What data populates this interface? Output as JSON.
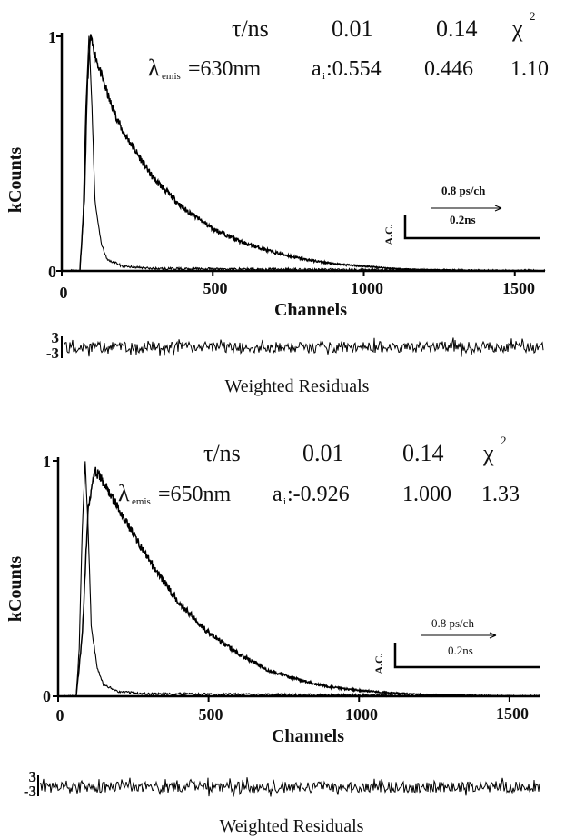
{
  "panels": [
    {
      "y_axis_label": "kCounts",
      "x_axis_label": "Channels",
      "y_ticks": [
        "1",
        "0"
      ],
      "x_ticks": [
        "0",
        "500",
        "1000",
        "1500"
      ],
      "fit_table": {
        "tau_label": "τ/ns",
        "tau_values": [
          "0.01",
          "0.14"
        ],
        "chi_label": "χ",
        "chi_sup": "2",
        "lambda_symbol": "λ",
        "lambda_sub": "emis",
        "lambda_value": "=630nm",
        "a_symbol": "a",
        "a_sub": "i",
        "a_values": [
          ":0.554",
          "0.446"
        ],
        "chi_value": "1.10"
      },
      "scale_box": {
        "rate": "0.8 ps/ch",
        "time": "0.2ns",
        "ac": "A.C."
      },
      "residuals": {
        "labels": [
          "3",
          "-3"
        ],
        "title": "Weighted Residuals"
      }
    },
    {
      "y_axis_label": "kCounts",
      "x_axis_label": "Channels",
      "y_ticks": [
        "1",
        "0"
      ],
      "x_ticks": [
        "0",
        "500",
        "1000",
        "1500"
      ],
      "fit_table": {
        "tau_label": "τ/ns",
        "tau_values": [
          "0.01",
          "0.14"
        ],
        "chi_label": "χ",
        "chi_sup": "2",
        "lambda_symbol": "λ",
        "lambda_sub": "emis",
        "lambda_value": "=650nm",
        "a_symbol": "a",
        "a_sub": "i",
        "a_values": [
          ":-0.926",
          "1.000"
        ],
        "chi_value": "1.33"
      },
      "scale_box": {
        "rate": "0.8 ps/ch",
        "time": "0.2ns",
        "ac": "A.C."
      },
      "residuals": {
        "labels": [
          "3",
          "-3"
        ],
        "title": "Weighted Residuals"
      }
    }
  ],
  "chart_data": [
    {
      "type": "line",
      "xlabel": "Channels",
      "ylabel": "kCounts",
      "xlim": [
        0,
        1600
      ],
      "ylim": [
        0,
        1
      ],
      "series": [
        {
          "x": [
            0,
            60,
            75,
            85,
            95,
            100,
            120,
            160,
            200,
            300,
            400,
            500,
            600,
            700,
            800,
            900,
            1000,
            1100,
            1200,
            1400,
            1600
          ],
          "y": [
            0,
            0,
            0.3,
            0.8,
            1.0,
            0.97,
            0.88,
            0.72,
            0.6,
            0.4,
            0.27,
            0.18,
            0.12,
            0.08,
            0.05,
            0.03,
            0.02,
            0.01,
            0.005,
            0.002,
            0
          ]
        },
        {
          "x": [
            0,
            60,
            70,
            80,
            90,
            100,
            110,
            130,
            150,
            200,
            300,
            1600
          ],
          "y": [
            0,
            0,
            0.2,
            0.7,
            1.0,
            0.7,
            0.3,
            0.12,
            0.05,
            0.02,
            0.01,
            0
          ]
        }
      ]
    },
    {
      "type": "line",
      "xlabel": "Channels",
      "ylabel": "kCounts",
      "xlim": [
        0,
        1600
      ],
      "ylim": [
        0,
        1
      ],
      "series": [
        {
          "x": [
            0,
            60,
            80,
            100,
            120,
            140,
            200,
            300,
            400,
            500,
            600,
            700,
            800,
            900,
            1000,
            1100,
            1200,
            1400,
            1600
          ],
          "y": [
            0,
            0,
            0.25,
            0.8,
            0.96,
            0.93,
            0.8,
            0.58,
            0.4,
            0.27,
            0.18,
            0.11,
            0.07,
            0.04,
            0.025,
            0.015,
            0.008,
            0.003,
            0
          ]
        },
        {
          "x": [
            0,
            60,
            70,
            80,
            90,
            100,
            110,
            130,
            150,
            200,
            300,
            1600
          ],
          "y": [
            0,
            0,
            0.2,
            0.7,
            1.0,
            0.7,
            0.3,
            0.12,
            0.05,
            0.02,
            0.01,
            0
          ]
        }
      ]
    }
  ]
}
